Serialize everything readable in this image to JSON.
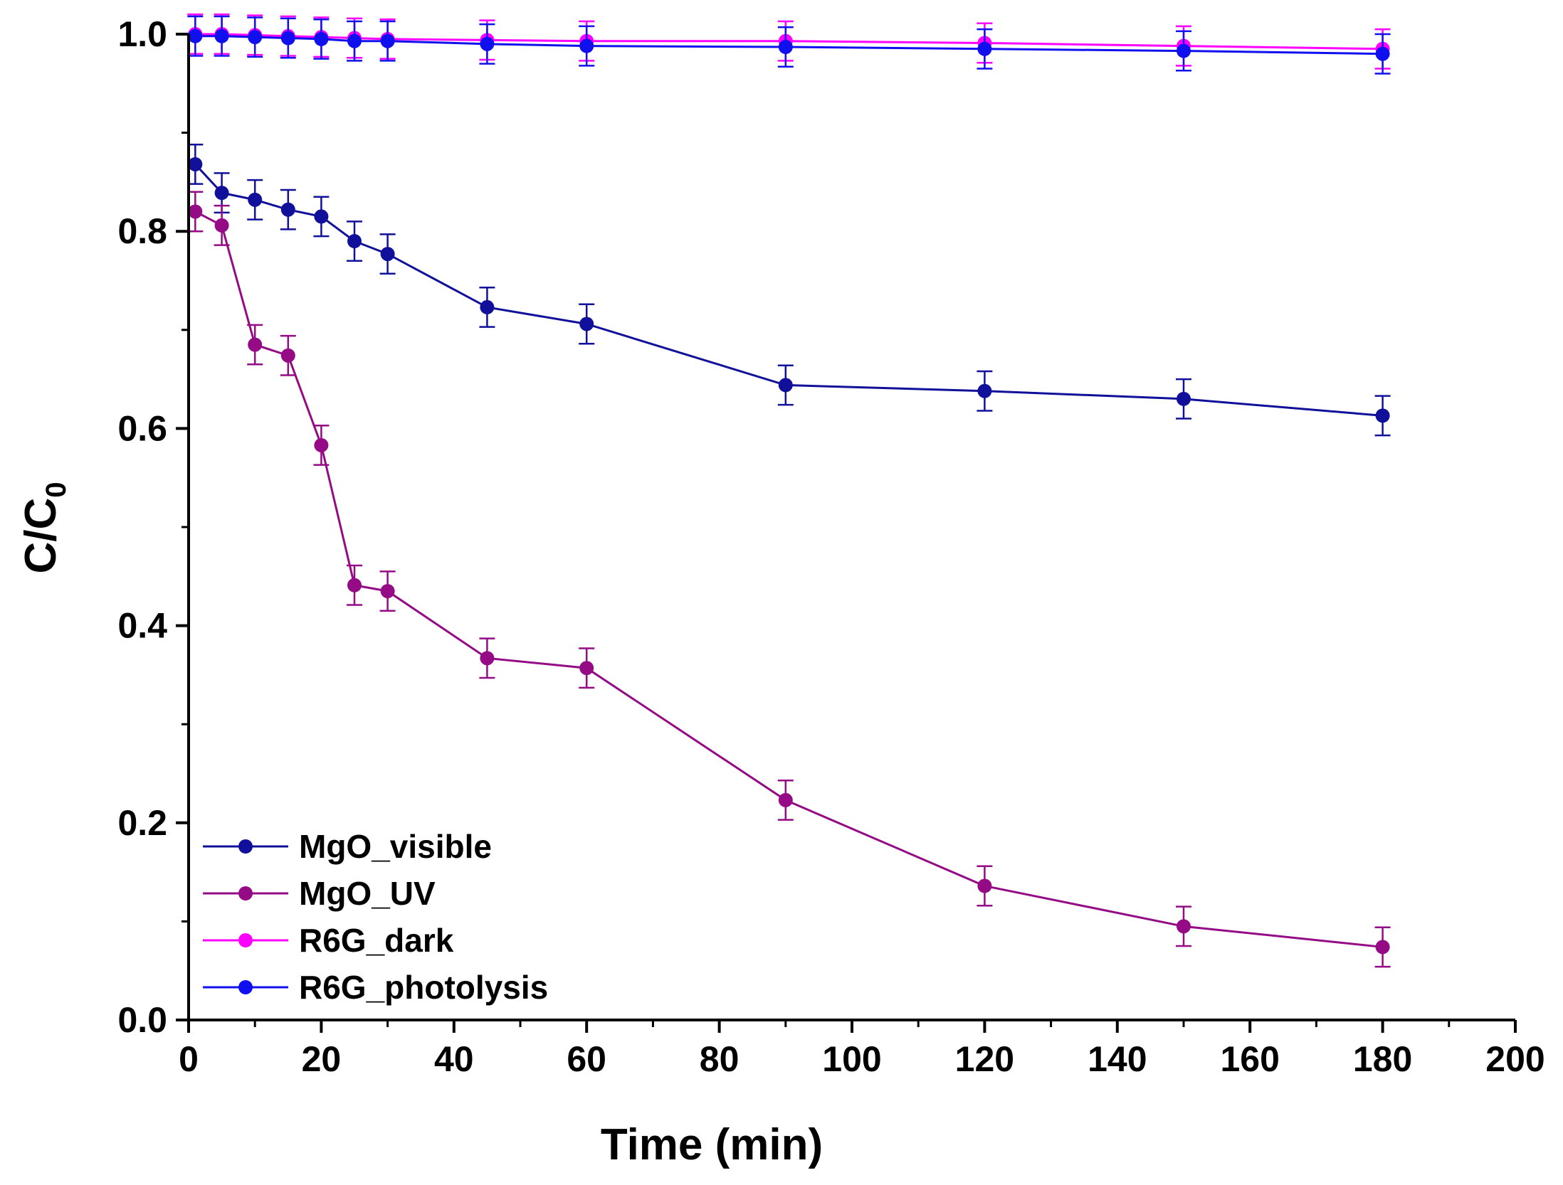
{
  "chart_data": {
    "type": "line",
    "title": "",
    "xlabel": "Time (min)",
    "ylabel": "C/C0",
    "ylabel_main": "C/C",
    "ylabel_sub": "0",
    "xlim": [
      0,
      200
    ],
    "ylim": [
      0,
      1.0
    ],
    "x_ticks": [
      0,
      20,
      40,
      60,
      80,
      100,
      120,
      140,
      160,
      180,
      200
    ],
    "y_ticks": [
      0.0,
      0.2,
      0.4,
      0.6,
      0.8,
      1.0
    ],
    "x_tick_labels": [
      "0",
      "20",
      "40",
      "60",
      "80",
      "100",
      "120",
      "140",
      "160",
      "180",
      "200"
    ],
    "y_tick_labels": [
      "0.0",
      "0.2",
      "0.4",
      "0.6",
      "0.8",
      "1.0"
    ],
    "grid": false,
    "legend_position": "bottom-left",
    "error_bar": 0.02,
    "series": [
      {
        "name": "MgO_visible",
        "color": "#10109a",
        "x": [
          1,
          5,
          10,
          15,
          20,
          25,
          30,
          45,
          60,
          90,
          120,
          150,
          180
        ],
        "values": [
          0.868,
          0.839,
          0.832,
          0.822,
          0.815,
          0.79,
          0.777,
          0.723,
          0.706,
          0.644,
          0.638,
          0.63,
          0.613
        ]
      },
      {
        "name": "MgO_UV",
        "color": "#950a85",
        "x": [
          1,
          5,
          10,
          15,
          20,
          25,
          30,
          45,
          60,
          90,
          120,
          150,
          180
        ],
        "values": [
          0.82,
          0.806,
          0.685,
          0.674,
          0.583,
          0.441,
          0.435,
          0.367,
          0.357,
          0.223,
          0.136,
          0.095,
          0.074
        ]
      },
      {
        "name": "R6G_dark",
        "color": "#ff00ff",
        "x": [
          1,
          5,
          10,
          15,
          20,
          25,
          30,
          45,
          60,
          90,
          120,
          150,
          180
        ],
        "values": [
          1.0,
          1.0,
          0.999,
          0.998,
          0.997,
          0.996,
          0.995,
          0.994,
          0.993,
          0.993,
          0.991,
          0.988,
          0.985
        ]
      },
      {
        "name": "R6G_photolysis",
        "color": "#1010ee",
        "x": [
          1,
          5,
          10,
          15,
          20,
          25,
          30,
          45,
          60,
          90,
          120,
          150,
          180
        ],
        "values": [
          0.998,
          0.998,
          0.997,
          0.996,
          0.995,
          0.993,
          0.993,
          0.99,
          0.988,
          0.987,
          0.985,
          0.983,
          0.98
        ]
      }
    ]
  }
}
